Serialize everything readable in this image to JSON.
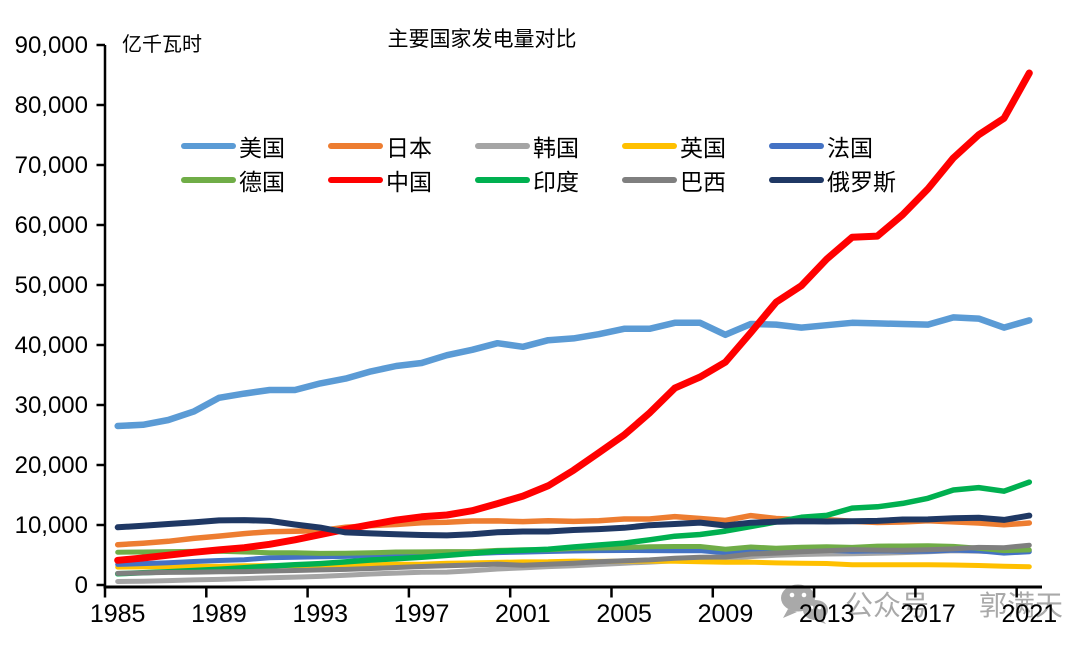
{
  "header": {
    "title": "主要国家发电量对比",
    "y_axis_unit": "亿千瓦时"
  },
  "watermark": {
    "icon": "wechat-icon",
    "prefix": "公众号",
    "name": "郭满天"
  },
  "chart_data": {
    "type": "line",
    "title": "主要国家发电量对比",
    "ylabel": "亿千瓦时",
    "ylim": [
      0,
      90000
    ],
    "ytick_interval": 10000,
    "ytick_labels": [
      "0",
      "10,000",
      "20,000",
      "30,000",
      "40,000",
      "50,000",
      "60,000",
      "70,000",
      "80,000",
      "90,000"
    ],
    "x": [
      1985,
      1986,
      1987,
      1988,
      1989,
      1990,
      1991,
      1992,
      1993,
      1994,
      1995,
      1996,
      1997,
      1998,
      1999,
      2000,
      2001,
      2002,
      2003,
      2004,
      2005,
      2006,
      2007,
      2008,
      2009,
      2010,
      2011,
      2012,
      2013,
      2014,
      2015,
      2016,
      2017,
      2018,
      2019,
      2020,
      2021
    ],
    "xtick_label_every": 4,
    "xtick_labels": [
      "1985",
      "1989",
      "1993",
      "1997",
      "2001",
      "2005",
      "2009",
      "2013",
      "2017",
      "2021"
    ],
    "grid": false,
    "legend_position": "top-left, 2 rows x 5 columns",
    "series": [
      {
        "id": "usa",
        "name": "美国",
        "color": "#5B9BD5",
        "width": 6.5,
        "values": [
          26500,
          26700,
          27500,
          28900,
          31200,
          31900,
          32500,
          32500,
          33600,
          34400,
          35600,
          36500,
          37000,
          38300,
          39200,
          40300,
          39700,
          40800,
          41100,
          41800,
          42700,
          42700,
          43700,
          43700,
          41700,
          43500,
          43400,
          42900,
          43300,
          43700,
          43600,
          43500,
          43400,
          44600,
          44400,
          42900,
          44100
        ]
      },
      {
        "id": "japan",
        "name": "日本",
        "color": "#ED7D31",
        "width": 5.5,
        "values": [
          6720,
          6960,
          7290,
          7760,
          8150,
          8570,
          8880,
          8950,
          9060,
          9640,
          9900,
          10090,
          10380,
          10460,
          10660,
          10680,
          10560,
          10720,
          10600,
          10710,
          11000,
          11000,
          11400,
          11080,
          10750,
          11560,
          11080,
          10880,
          10900,
          10610,
          10410,
          10500,
          10700,
          10510,
          10330,
          10040,
          10330
        ]
      },
      {
        "id": "korea",
        "name": "韩国",
        "color": "#A5A5A5",
        "width": 5,
        "values": [
          580,
          640,
          730,
          850,
          940,
          1070,
          1210,
          1310,
          1440,
          1620,
          1840,
          1980,
          2140,
          2150,
          2390,
          2660,
          2850,
          3060,
          3220,
          3420,
          3640,
          3810,
          4030,
          4220,
          4330,
          4740,
          4970,
          5090,
          5170,
          5220,
          5280,
          5400,
          5530,
          5700,
          5620,
          5520,
          5760
        ]
      },
      {
        "id": "uk",
        "name": "英国",
        "color": "#FFC000",
        "width": 5,
        "values": [
          2980,
          3010,
          3060,
          3100,
          3120,
          3200,
          3230,
          3210,
          3230,
          3260,
          3340,
          3470,
          3450,
          3620,
          3680,
          3770,
          3850,
          3870,
          3980,
          3940,
          3980,
          3980,
          3970,
          3890,
          3780,
          3820,
          3680,
          3630,
          3590,
          3390,
          3390,
          3390,
          3380,
          3330,
          3250,
          3120,
          3050
        ]
      },
      {
        "id": "france",
        "name": "法国",
        "color": "#4472C4",
        "width": 5,
        "values": [
          3440,
          3570,
          3720,
          3920,
          4090,
          4210,
          4550,
          4620,
          4720,
          4760,
          4930,
          5130,
          5050,
          5110,
          5230,
          5400,
          5490,
          5590,
          5660,
          5740,
          5750,
          5740,
          5700,
          5740,
          5360,
          5690,
          5620,
          5640,
          5770,
          5630,
          5680,
          5640,
          5620,
          5820,
          5710,
          5320,
          5550
        ]
      },
      {
        "id": "germany",
        "name": "德国",
        "color": "#70AD47",
        "width": 5,
        "values": [
          5470,
          5500,
          5560,
          5600,
          5610,
          5500,
          5390,
          5370,
          5260,
          5290,
          5370,
          5500,
          5520,
          5570,
          5560,
          5770,
          5860,
          5870,
          6080,
          6170,
          6230,
          6390,
          6410,
          6410,
          5960,
          6330,
          6130,
          6300,
          6380,
          6270,
          6480,
          6500,
          6540,
          6430,
          6120,
          5740,
          5850
        ]
      },
      {
        "id": "china",
        "name": "中国",
        "color": "#FF0000",
        "width": 7,
        "values": [
          4110,
          4500,
          4970,
          5450,
          5850,
          6210,
          6780,
          7540,
          8400,
          9280,
          10070,
          10810,
          11360,
          11670,
          12390,
          13560,
          14810,
          16540,
          19110,
          22030,
          25000,
          28660,
          32820,
          34670,
          37150,
          42070,
          47130,
          49880,
          54320,
          57950,
          58150,
          61710,
          66040,
          71180,
          75040,
          77790,
          85340
        ]
      },
      {
        "id": "india",
        "name": "印度",
        "color": "#00B050",
        "width": 5.5,
        "values": [
          1870,
          2030,
          2210,
          2420,
          2640,
          2890,
          3150,
          3360,
          3560,
          3850,
          4170,
          4360,
          4640,
          4940,
          5270,
          5610,
          5790,
          5970,
          6330,
          6670,
          6980,
          7530,
          8140,
          8420,
          8990,
          9740,
          10520,
          11280,
          11600,
          12820,
          13040,
          13600,
          14450,
          15830,
          16230,
          15630,
          17150
        ]
      },
      {
        "id": "brazil",
        "name": "巴西",
        "color": "#7F7F7F",
        "width": 5,
        "values": [
          1930,
          2020,
          2100,
          2140,
          2210,
          2230,
          2340,
          2420,
          2520,
          2600,
          2750,
          2910,
          3080,
          3220,
          3340,
          3490,
          3280,
          3450,
          3640,
          3870,
          4030,
          4190,
          4450,
          4630,
          4660,
          5160,
          5320,
          5530,
          5700,
          5900,
          5810,
          5790,
          5880,
          6010,
          6260,
          6210,
          6630
        ]
      },
      {
        "id": "russia",
        "name": "俄罗斯",
        "color": "#1F3864",
        "width": 6,
        "values": [
          9620,
          9890,
          10160,
          10430,
          10770,
          10820,
          10680,
          10080,
          9560,
          8760,
          8600,
          8470,
          8340,
          8270,
          8460,
          8780,
          8910,
          8910,
          9160,
          9320,
          9530,
          9960,
          10160,
          10400,
          9920,
          10380,
          10550,
          10640,
          10590,
          10640,
          10680,
          10910,
          10940,
          11120,
          11220,
          10850,
          11570
        ]
      }
    ]
  }
}
